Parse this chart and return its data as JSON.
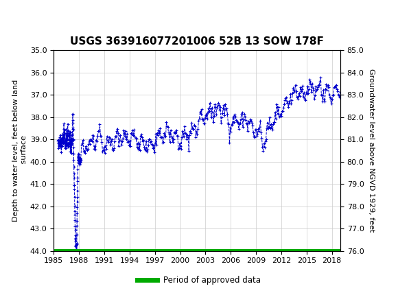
{
  "title": "USGS 363916077201006 52B 13 SOW 178F",
  "ylabel_left": "Depth to water level, feet below land\n surface",
  "ylabel_right": "Groundwater level above NGVD 1929, feet",
  "ylim_left": [
    44.0,
    35.0
  ],
  "ylim_right": [
    76.0,
    85.0
  ],
  "yticks_left": [
    35.0,
    36.0,
    37.0,
    38.0,
    39.0,
    40.0,
    41.0,
    42.0,
    43.0,
    44.0
  ],
  "yticks_right": [
    76.0,
    77.0,
    78.0,
    79.0,
    80.0,
    81.0,
    82.0,
    83.0,
    84.0,
    85.0
  ],
  "xlim": [
    1985,
    2019
  ],
  "xticks": [
    1985,
    1988,
    1991,
    1994,
    1997,
    2000,
    2003,
    2006,
    2009,
    2012,
    2015,
    2018
  ],
  "line_color": "#0000cc",
  "line_style": "--",
  "marker": "+",
  "marker_size": 3,
  "legend_label": "Period of approved data",
  "legend_color": "#00aa00",
  "header_color": "#1a6b3c",
  "background_color": "#ffffff",
  "grid_color": "#cccccc",
  "title_fontsize": 11,
  "axis_label_fontsize": 8,
  "tick_fontsize": 8
}
